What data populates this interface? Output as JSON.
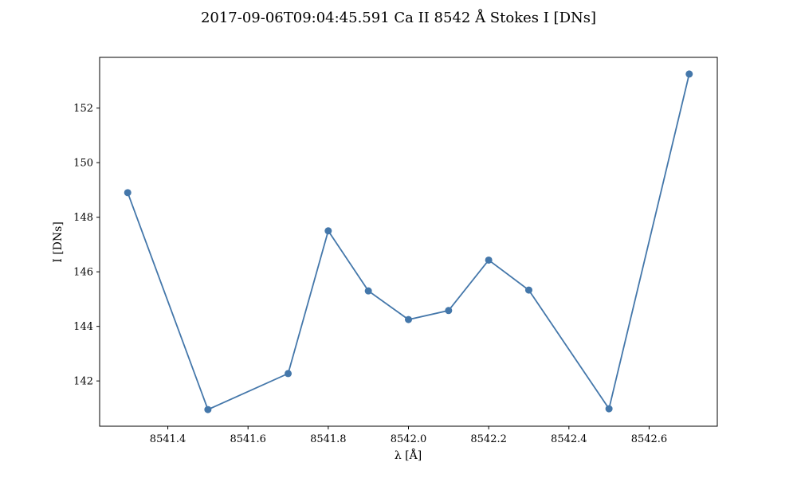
{
  "chart_data": {
    "type": "line",
    "title": "2017-09-06T09:04:45.591 Ca II 8542 Å Stokes I [DNs]",
    "xlabel": "λ [Å]",
    "ylabel": "I [DNs]",
    "xlim": [
      8541.23,
      8542.77
    ],
    "ylim": [
      140.34,
      153.86
    ],
    "x_ticks": [
      8541.4,
      8541.6,
      8541.8,
      8542.0,
      8542.2,
      8542.4,
      8542.6
    ],
    "x_tick_labels": [
      "8541.4",
      "8541.6",
      "8541.8",
      "8542.0",
      "8542.2",
      "8542.4",
      "8542.6"
    ],
    "y_ticks": [
      142,
      144,
      146,
      148,
      150,
      152
    ],
    "y_tick_labels": [
      "142",
      "144",
      "146",
      "148",
      "150",
      "152"
    ],
    "grid": false,
    "line_color": "#4477aa",
    "series": [
      {
        "x": [
          8541.3,
          8541.5,
          8541.7,
          8541.8,
          8541.9,
          8542.0,
          8542.1,
          8542.2,
          8542.3,
          8542.5,
          8542.7
        ],
        "values": [
          148.9,
          140.95,
          142.27,
          147.5,
          145.3,
          144.25,
          144.58,
          146.43,
          145.33,
          140.98,
          153.25
        ]
      }
    ]
  }
}
